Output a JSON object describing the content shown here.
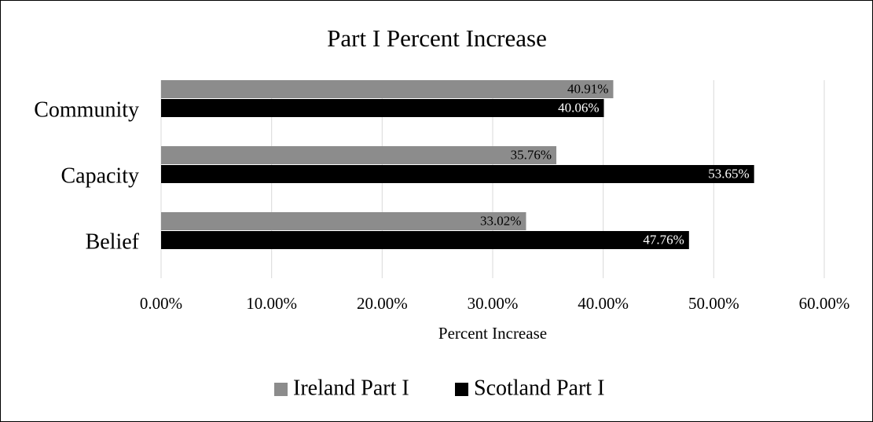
{
  "chart_data": {
    "type": "bar",
    "orientation": "horizontal",
    "title": "Part I Percent Increase",
    "xlabel": "Percent Increase",
    "ylabel": "",
    "categories": [
      "Community",
      "Capacity",
      "Belief"
    ],
    "xlim": [
      0,
      60
    ],
    "xticks": [
      "0.00%",
      "10.00%",
      "20.00%",
      "30.00%",
      "40.00%",
      "50.00%",
      "60.00%"
    ],
    "grid": true,
    "legend_position": "bottom",
    "series": [
      {
        "name": "Ireland Part I",
        "color": "#8c8c8c",
        "label_color": "#000000",
        "values": [
          40.91,
          35.76,
          33.02
        ],
        "labels": [
          "40.91%",
          "35.76%",
          "33.02%"
        ]
      },
      {
        "name": "Scotland Part I",
        "color": "#000000",
        "label_color": "#ffffff",
        "values": [
          40.06,
          53.65,
          47.76
        ],
        "labels": [
          "40.06%",
          "53.65%",
          "47.76%"
        ]
      }
    ]
  }
}
